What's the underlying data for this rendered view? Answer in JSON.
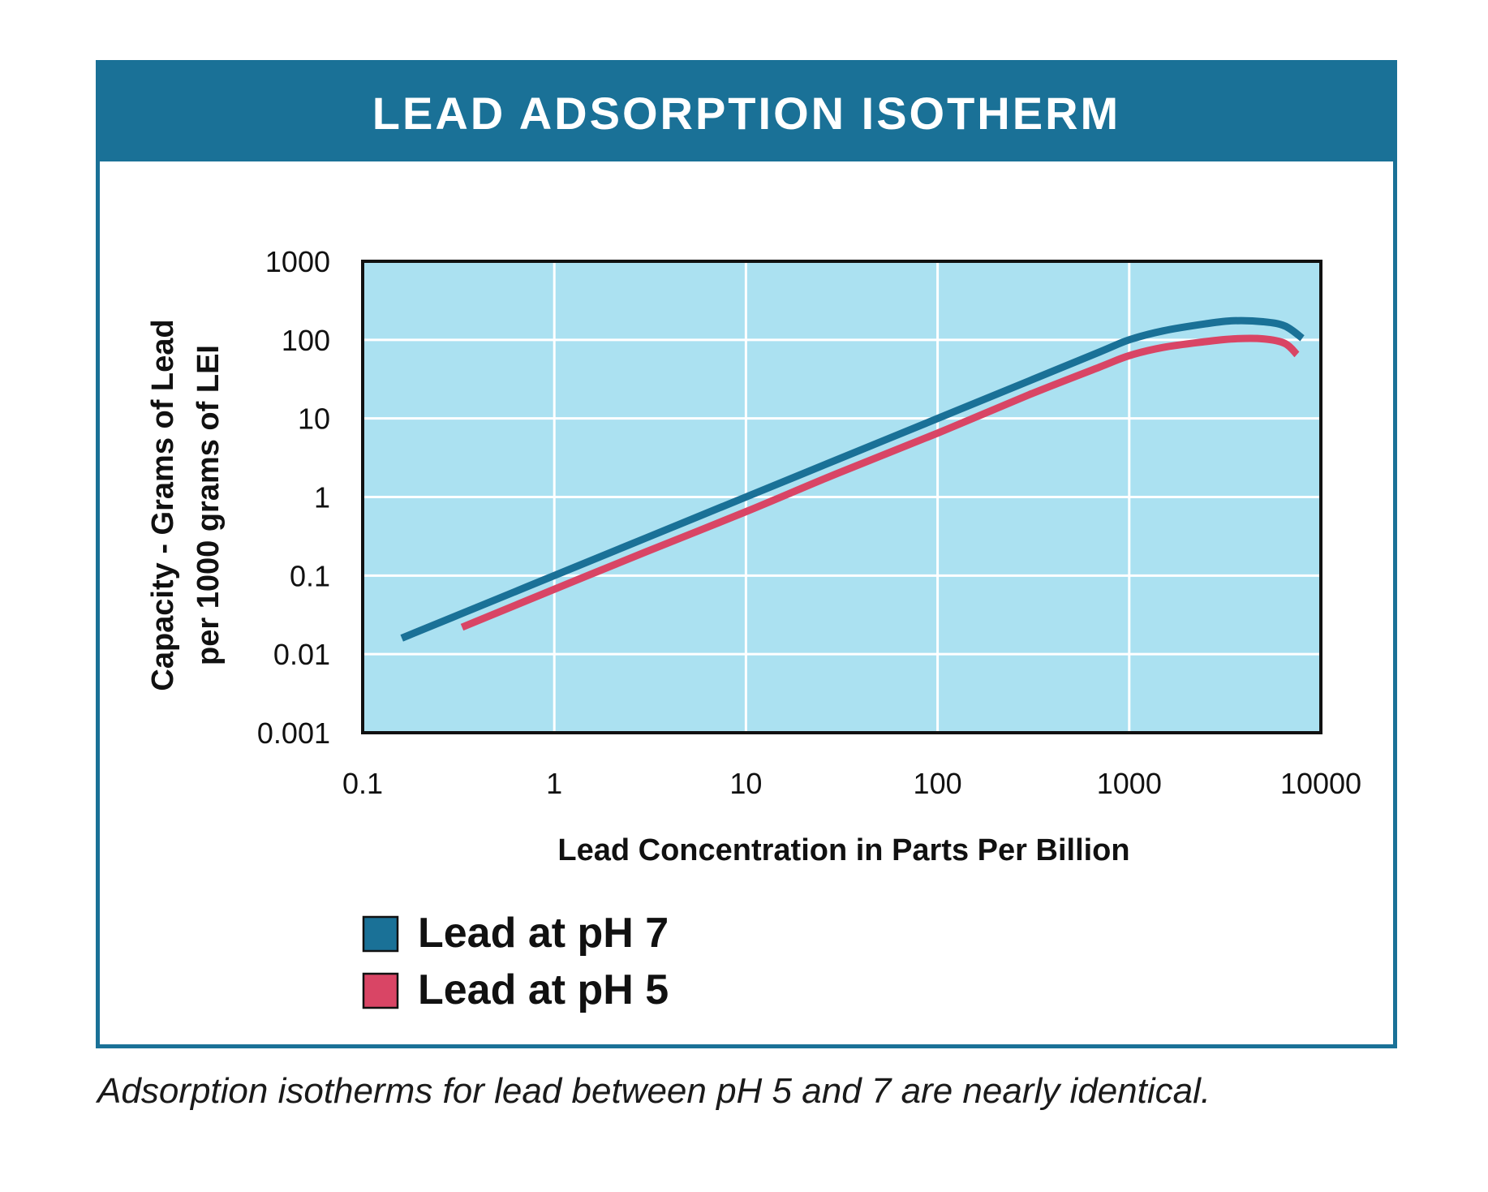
{
  "caption": "Adsorption isotherms for lead between pH 5 and 7 are nearly identical.",
  "colors": {
    "frame": "#1a7197",
    "plot_background": "#abe1f1",
    "grid": "#ffffff",
    "ph7": "#1a7197",
    "ph5": "#d94565"
  },
  "chart_data": {
    "type": "line",
    "title": "LEAD ADSORPTION ISOTHERM",
    "xlabel": "Lead Concentration in Parts Per Billion",
    "ylabel_lines": [
      "Capacity - Grams of Lead",
      "per 1000 grams of LEI"
    ],
    "x_scale": "log",
    "y_scale": "log",
    "xlim": [
      0.1,
      10000
    ],
    "ylim": [
      0.001,
      1000
    ],
    "x_ticks": [
      "0.1",
      "1",
      "10",
      "100",
      "1000",
      "10000"
    ],
    "y_ticks": [
      "0.001",
      "0.01",
      "0.1",
      "1",
      "10",
      "100",
      "1000"
    ],
    "grid": true,
    "legend_position": "bottom-left",
    "series": [
      {
        "name": "Lead at pH 7",
        "color": "#1a7197",
        "points": [
          [
            0.16,
            0.016
          ],
          [
            0.5,
            0.05
          ],
          [
            1,
            0.1
          ],
          [
            3,
            0.3
          ],
          [
            10,
            1
          ],
          [
            30,
            3
          ],
          [
            100,
            10
          ],
          [
            300,
            30
          ],
          [
            700,
            70
          ],
          [
            1000,
            100
          ],
          [
            1500,
            130
          ],
          [
            2500,
            160
          ],
          [
            3500,
            175
          ],
          [
            5000,
            170
          ],
          [
            6500,
            150
          ],
          [
            8000,
            105
          ]
        ]
      },
      {
        "name": "Lead at pH 5",
        "color": "#d94565",
        "points": [
          [
            0.33,
            0.022
          ],
          [
            1,
            0.067
          ],
          [
            3,
            0.2
          ],
          [
            10,
            0.65
          ],
          [
            30,
            2
          ],
          [
            100,
            6.5
          ],
          [
            300,
            20
          ],
          [
            700,
            45
          ],
          [
            1000,
            63
          ],
          [
            1500,
            80
          ],
          [
            2500,
            95
          ],
          [
            3500,
            103
          ],
          [
            5000,
            103
          ],
          [
            6500,
            90
          ],
          [
            7500,
            65
          ]
        ]
      }
    ]
  }
}
